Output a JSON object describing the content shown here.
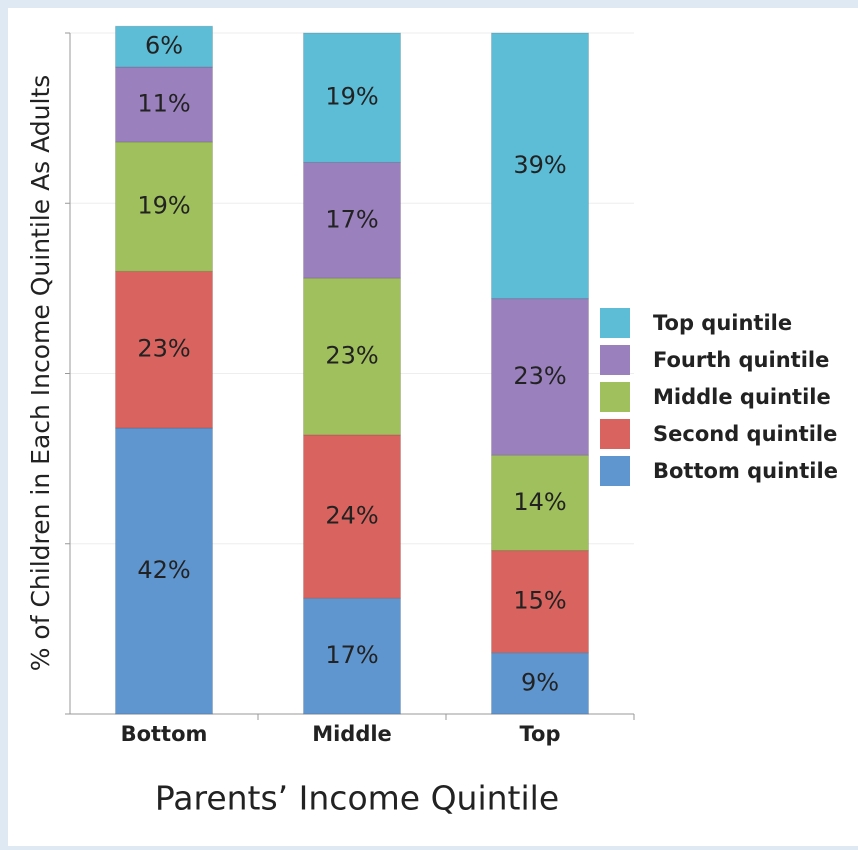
{
  "chart_data": {
    "type": "stacked_bar",
    "y_label": "% of Children in Each Income Quintile As Adults",
    "x_label": "Parents’ Income Quintile",
    "categories": [
      "Bottom",
      "Middle",
      "Top"
    ],
    "series": [
      {
        "name": "Bottom quintile",
        "color": "#6096cf",
        "values": [
          42,
          17,
          9
        ],
        "value_labels": [
          "42%",
          "17%",
          "9%"
        ]
      },
      {
        "name": "Second quintile",
        "color": "#d9645f",
        "values": [
          23,
          24,
          15
        ],
        "value_labels": [
          "23%",
          "24%",
          "15%"
        ]
      },
      {
        "name": "Middle quintile",
        "color": "#9fc05c",
        "values": [
          19,
          23,
          14
        ],
        "value_labels": [
          "19%",
          "23%",
          "14%"
        ]
      },
      {
        "name": "Fourth quintile",
        "color": "#9a80bd",
        "values": [
          11,
          17,
          23
        ],
        "value_labels": [
          "11%",
          "17%",
          "23%"
        ]
      },
      {
        "name": "Top quintile",
        "color": "#5dbdd6",
        "values": [
          6,
          19,
          39
        ],
        "value_labels": [
          "6%",
          "19%",
          "39%"
        ]
      }
    ],
    "ylim": [
      0,
      100
    ],
    "yticks": [
      0,
      25,
      50,
      75,
      100
    ],
    "grid": true,
    "legend": "right"
  }
}
